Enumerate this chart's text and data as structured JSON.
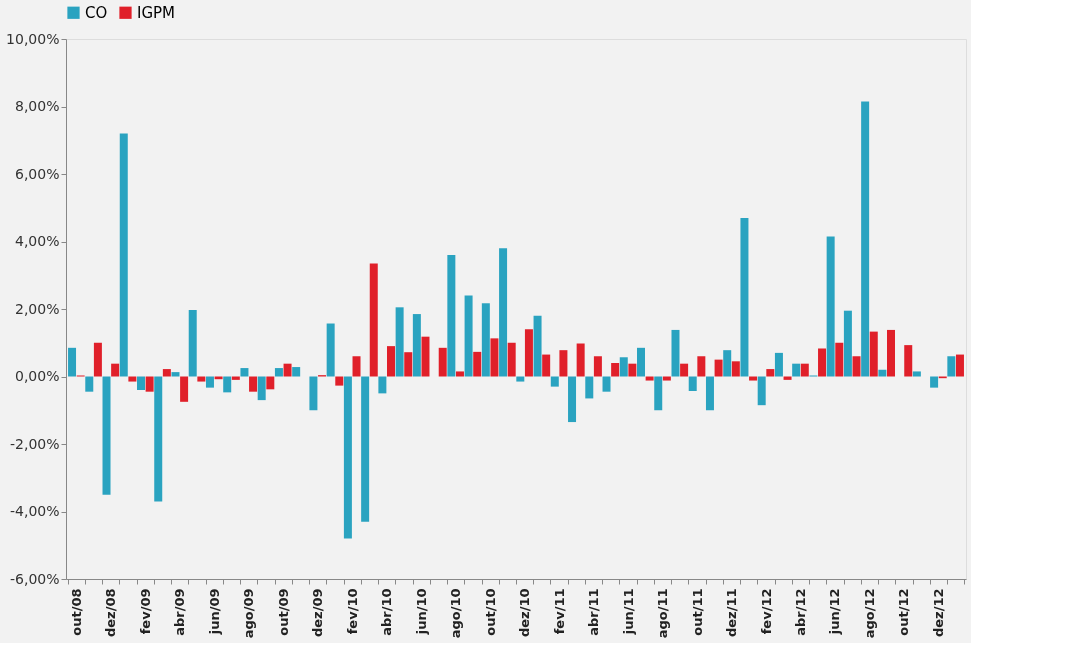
{
  "chart_data": {
    "type": "bar",
    "categories": [
      "out/08",
      null,
      "dez/08",
      null,
      "fev/09",
      null,
      "abr/09",
      null,
      "jun/09",
      null,
      "ago/09",
      null,
      "out/09",
      null,
      "dez/09",
      null,
      "fev/10",
      null,
      "abr/10",
      null,
      "jun/10",
      null,
      "ago/10",
      null,
      "out/10",
      null,
      "dez/10",
      null,
      "fev/11",
      null,
      "abr/11",
      null,
      "jun/11",
      null,
      "ago/11",
      null,
      "out/11",
      null,
      "dez/11",
      null,
      "fev/12",
      null,
      "abr/12",
      null,
      "jun/12",
      null,
      "ago/12",
      null,
      "out/12",
      null,
      "dez/12",
      null
    ],
    "series": [
      {
        "name": "CO",
        "color": "#2aa3c0",
        "values": [
          0.85,
          -0.45,
          -3.5,
          7.2,
          -0.4,
          -3.7,
          0.13,
          1.97,
          -0.33,
          -0.47,
          0.25,
          -0.7,
          0.25,
          0.28,
          -1.0,
          1.57,
          -4.8,
          -4.3,
          -0.5,
          2.05,
          1.85,
          null,
          3.6,
          2.4,
          2.17,
          3.8,
          -0.15,
          1.8,
          -0.3,
          -1.35,
          -0.65,
          -0.45,
          0.57,
          0.85,
          -1.0,
          1.38,
          -0.43,
          -1.0,
          0.78,
          4.7,
          -0.85,
          0.7,
          0.38,
          0.03,
          4.15,
          1.95,
          8.15,
          0.2,
          null,
          0.15,
          -0.33,
          0.6
        ]
      },
      {
        "name": "IGPM",
        "color": "#e0202a",
        "values": [
          0.03,
          1.0,
          0.38,
          -0.15,
          -0.45,
          0.22,
          -0.75,
          -0.15,
          -0.08,
          -0.1,
          -0.45,
          -0.38,
          0.38,
          null,
          0.04,
          -0.27,
          0.6,
          3.35,
          0.9,
          0.72,
          1.18,
          0.85,
          0.15,
          0.73,
          1.13,
          1.0,
          1.4,
          0.65,
          0.78,
          0.98,
          0.6,
          0.4,
          0.38,
          -0.12,
          -0.12,
          0.38,
          0.6,
          0.5,
          0.45,
          -0.12,
          0.22,
          -0.1,
          0.38,
          0.83,
          1.0,
          0.6,
          1.33,
          1.38,
          0.93,
          null,
          -0.05,
          0.65
        ]
      }
    ],
    "ylim": [
      -6,
      10
    ],
    "yticks": [
      {
        "value": -6,
        "label": "-6,00%"
      },
      {
        "value": -4,
        "label": "-4,00%"
      },
      {
        "value": -2,
        "label": "-2,00%"
      },
      {
        "value": 0,
        "label": "0,00%"
      },
      {
        "value": 2,
        "label": "2,00%"
      },
      {
        "value": 4,
        "label": "4,00%"
      },
      {
        "value": 6,
        "label": "6,00%"
      },
      {
        "value": 8,
        "label": "8,00%"
      },
      {
        "value": 10,
        "label": "10,00%"
      }
    ],
    "grid": false,
    "legend": "top"
  }
}
